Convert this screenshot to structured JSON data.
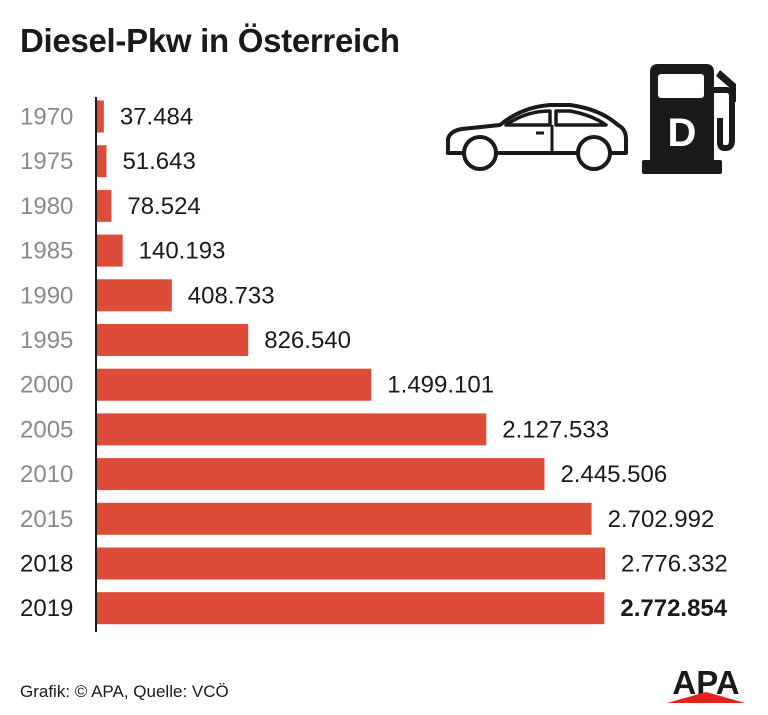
{
  "title": "Diesel-Pkw in Österreich",
  "source": "Grafik: © APA, Quelle: VCÖ",
  "logo": "APA",
  "pump_letter": "D",
  "colors": {
    "bar": "#dd4b39",
    "text": "#1a1a1a",
    "year_muted": "#8a8a8a",
    "logo_red": "#e2231a"
  },
  "icons": [
    "car-icon",
    "fuel-pump-icon",
    "apa-logo"
  ],
  "chart_data": {
    "type": "bar",
    "orientation": "horizontal",
    "title": "Diesel-Pkw in Österreich",
    "categories": [
      "1970",
      "1975",
      "1980",
      "1985",
      "1990",
      "1995",
      "2000",
      "2005",
      "2010",
      "2015",
      "2018",
      "2019"
    ],
    "values": [
      37484,
      51643,
      78524,
      140193,
      408733,
      826540,
      1499101,
      2127533,
      2445506,
      2702992,
      2776332,
      2772854
    ],
    "value_labels": [
      "37.484",
      "51.643",
      "78.524",
      "140.193",
      "408.733",
      "826.540",
      "1.499.101",
      "2.127.533",
      "2.445.506",
      "2.702.992",
      "2.776.332",
      "2.772.854"
    ],
    "highlight_last": true,
    "grid": false,
    "legend": "none"
  }
}
